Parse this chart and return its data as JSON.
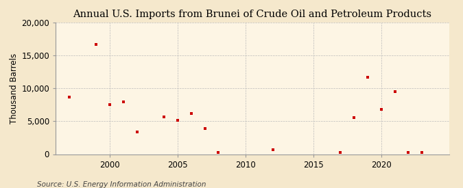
{
  "title": "Annual U.S. Imports from Brunei of Crude Oil and Petroleum Products",
  "ylabel": "Thousand Barrels",
  "source": "Source: U.S. Energy Information Administration",
  "background_color": "#f5e8cc",
  "plot_background_color": "#fdf5e4",
  "marker_color": "#cc0000",
  "years": [
    1997,
    1999,
    2000,
    2001,
    2002,
    2004,
    2005,
    2006,
    2007,
    2008,
    2012,
    2017,
    2018,
    2019,
    2020,
    2021,
    2022,
    2023
  ],
  "values": [
    8700,
    16700,
    7500,
    8000,
    3400,
    5700,
    5100,
    6200,
    3900,
    300,
    700,
    300,
    5600,
    11700,
    6800,
    9500,
    300,
    300
  ],
  "ylim": [
    0,
    20000
  ],
  "xlim": [
    1996,
    2025
  ],
  "yticks": [
    0,
    5000,
    10000,
    15000,
    20000
  ],
  "ytick_labels": [
    "0",
    "5,000",
    "10,000",
    "15,000",
    "20,000"
  ],
  "xticks": [
    2000,
    2005,
    2010,
    2015,
    2020
  ],
  "title_fontsize": 10.5,
  "axis_fontsize": 8.5,
  "source_fontsize": 7.5,
  "grid_color": "#bbbbbb",
  "spine_color": "#999999"
}
